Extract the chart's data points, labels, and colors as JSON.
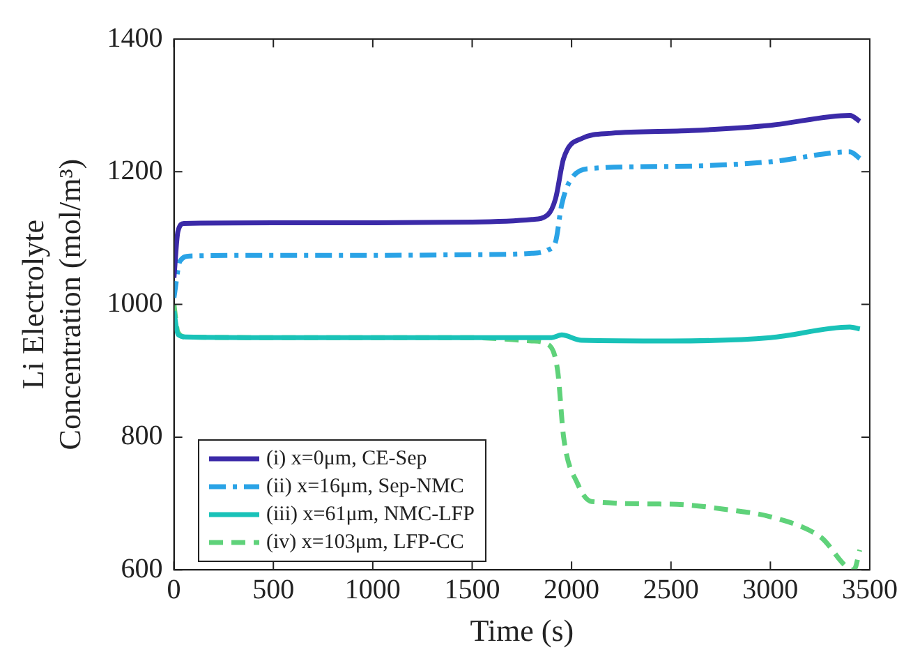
{
  "chart_data": {
    "type": "line",
    "xlabel": "Time (s)",
    "ylabel": "Li Electrolyte\nConcentration (mol/m³)",
    "xlim": [
      0,
      3500
    ],
    "xticks": [
      0,
      500,
      1000,
      1500,
      2000,
      2500,
      3000,
      3500
    ],
    "ylim": [
      600,
      1400
    ],
    "yticks": [
      600,
      800,
      1000,
      1200,
      1400
    ],
    "grid": false,
    "legend": "bottom left",
    "marker": "none",
    "series": [
      {
        "name": "(i) x=0μm, CE-Sep",
        "color": "#3b2aa8",
        "line_style": "solid",
        "x": [
          0,
          20,
          50,
          500,
          1000,
          1500,
          1800,
          1880,
          1920,
          1960,
          2050,
          2200,
          2600,
          3000,
          3400,
          3450
        ],
        "values": [
          1040,
          1110,
          1122,
          1123,
          1123,
          1124,
          1128,
          1135,
          1160,
          1220,
          1250,
          1258,
          1262,
          1270,
          1285,
          1276
        ]
      },
      {
        "name": "(ii) x=16μm, Sep-NMC",
        "color": "#2aa3e6",
        "line_style": "dashdot",
        "x": [
          0,
          30,
          80,
          500,
          1000,
          1500,
          1800,
          1880,
          1920,
          1950,
          2000,
          2100,
          2500,
          3000,
          3400,
          3450
        ],
        "values": [
          1010,
          1065,
          1073,
          1074,
          1074,
          1075,
          1077,
          1082,
          1095,
          1150,
          1190,
          1205,
          1208,
          1215,
          1230,
          1220
        ]
      },
      {
        "name": "(iii) x=61μm, NMC-LFP",
        "color": "#19c2b8",
        "line_style": "solid",
        "x": [
          0,
          20,
          60,
          500,
          1000,
          1500,
          1900,
          1950,
          2050,
          2500,
          3000,
          3400,
          3450
        ],
        "values": [
          990,
          955,
          951,
          950,
          950,
          950,
          950,
          954,
          946,
          945,
          950,
          966,
          963
        ]
      },
      {
        "name": "(iv) x=103μm, LFP-CC",
        "color": "#5fd27a",
        "line_style": "dashed",
        "x": [
          0,
          20,
          60,
          500,
          1000,
          1500,
          1800,
          1880,
          1930,
          1960,
          2030,
          2100,
          2500,
          2800,
          3000,
          3250,
          3420,
          3450
        ],
        "values": [
          1000,
          958,
          951,
          950,
          950,
          950,
          945,
          940,
          900,
          800,
          730,
          703,
          699,
          690,
          680,
          650,
          600,
          630
        ]
      }
    ]
  }
}
